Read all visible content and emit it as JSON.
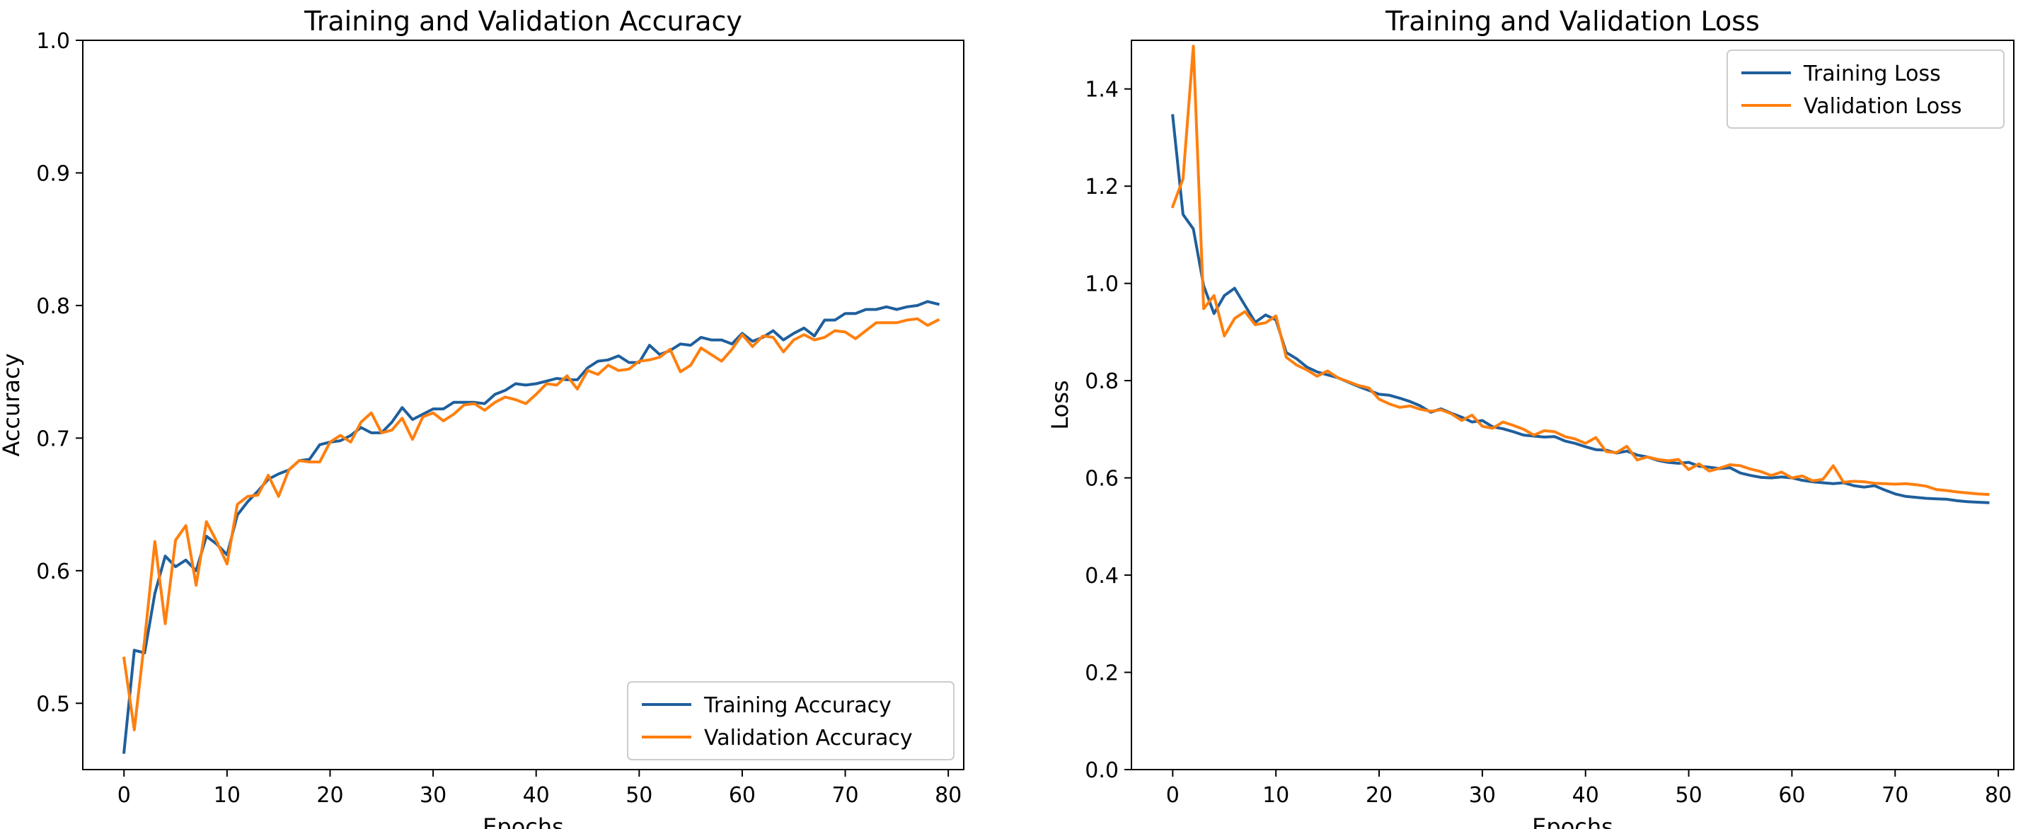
{
  "chart_data": [
    {
      "type": "line",
      "title": "Training and Validation Accuracy",
      "xlabel": "Epochs",
      "ylabel": "Accuracy",
      "xlim": [
        -4,
        81.5
      ],
      "ylim": [
        0.45,
        1.0
      ],
      "xticks": [
        0,
        10,
        20,
        30,
        40,
        50,
        60,
        70,
        80
      ],
      "yticks": [
        0.5,
        0.6,
        0.7,
        0.8,
        0.9,
        1.0
      ],
      "ytick_labels": [
        "0.5",
        "0.6",
        "0.7",
        "0.8",
        "0.9",
        "1.0"
      ],
      "grid": false,
      "legend_position": "lower-right",
      "x": [
        0,
        1,
        2,
        3,
        4,
        5,
        6,
        7,
        8,
        9,
        10,
        11,
        12,
        13,
        14,
        15,
        16,
        17,
        18,
        19,
        20,
        21,
        22,
        23,
        24,
        25,
        26,
        27,
        28,
        29,
        30,
        31,
        32,
        33,
        34,
        35,
        36,
        37,
        38,
        39,
        40,
        41,
        42,
        43,
        44,
        45,
        46,
        47,
        48,
        49,
        50,
        51,
        52,
        53,
        54,
        55,
        56,
        57,
        58,
        59,
        60,
        61,
        62,
        63,
        64,
        65,
        66,
        67,
        68,
        69,
        70,
        71,
        72,
        73,
        74,
        75,
        76,
        77,
        78,
        79
      ],
      "series": [
        {
          "name": "Training Accuracy",
          "color": "#1f5f9c",
          "values": [
            0.463,
            0.54,
            0.538,
            0.583,
            0.611,
            0.603,
            0.608,
            0.6,
            0.626,
            0.62,
            0.612,
            0.642,
            0.652,
            0.66,
            0.669,
            0.673,
            0.676,
            0.683,
            0.684,
            0.695,
            0.697,
            0.698,
            0.702,
            0.708,
            0.704,
            0.704,
            0.712,
            0.723,
            0.714,
            0.718,
            0.722,
            0.722,
            0.727,
            0.727,
            0.727,
            0.726,
            0.733,
            0.736,
            0.741,
            0.74,
            0.741,
            0.743,
            0.745,
            0.744,
            0.744,
            0.753,
            0.758,
            0.759,
            0.762,
            0.757,
            0.757,
            0.77,
            0.763,
            0.766,
            0.771,
            0.77,
            0.776,
            0.774,
            0.774,
            0.771,
            0.779,
            0.773,
            0.776,
            0.781,
            0.774,
            0.779,
            0.783,
            0.777,
            0.789,
            0.789,
            0.794,
            0.794,
            0.797,
            0.797,
            0.799,
            0.797,
            0.799,
            0.8,
            0.803,
            0.801
          ]
        },
        {
          "name": "Validation Accuracy",
          "color": "#ff7f0e",
          "values": [
            0.534,
            0.48,
            0.548,
            0.622,
            0.56,
            0.623,
            0.634,
            0.589,
            0.637,
            0.622,
            0.605,
            0.65,
            0.656,
            0.657,
            0.672,
            0.656,
            0.676,
            0.683,
            0.682,
            0.682,
            0.697,
            0.702,
            0.697,
            0.712,
            0.719,
            0.704,
            0.706,
            0.715,
            0.699,
            0.716,
            0.719,
            0.713,
            0.718,
            0.725,
            0.726,
            0.721,
            0.727,
            0.731,
            0.729,
            0.726,
            0.733,
            0.741,
            0.74,
            0.747,
            0.737,
            0.751,
            0.748,
            0.755,
            0.751,
            0.752,
            0.758,
            0.759,
            0.761,
            0.767,
            0.75,
            0.755,
            0.768,
            0.763,
            0.758,
            0.767,
            0.778,
            0.769,
            0.777,
            0.776,
            0.765,
            0.774,
            0.778,
            0.774,
            0.776,
            0.781,
            0.78,
            0.775,
            0.781,
            0.787,
            0.787,
            0.787,
            0.789,
            0.79,
            0.785,
            0.789
          ]
        }
      ]
    },
    {
      "type": "line",
      "title": "Training and Validation Loss",
      "xlabel": "Epochs",
      "ylabel": "Loss",
      "xlim": [
        -4,
        81.5
      ],
      "ylim": [
        0.0,
        1.5
      ],
      "xticks": [
        0,
        10,
        20,
        30,
        40,
        50,
        60,
        70,
        80
      ],
      "yticks": [
        0.0,
        0.2,
        0.4,
        0.6,
        0.8,
        1.0,
        1.2,
        1.4
      ],
      "ytick_labels": [
        "0.0",
        "0.2",
        "0.4",
        "0.6",
        "0.8",
        "1.0",
        "1.2",
        "1.4"
      ],
      "grid": false,
      "legend_position": "upper-right",
      "x": [
        0,
        1,
        2,
        3,
        4,
        5,
        6,
        7,
        8,
        9,
        10,
        11,
        12,
        13,
        14,
        15,
        16,
        17,
        18,
        19,
        20,
        21,
        22,
        23,
        24,
        25,
        26,
        27,
        28,
        29,
        30,
        31,
        32,
        33,
        34,
        35,
        36,
        37,
        38,
        39,
        40,
        41,
        42,
        43,
        44,
        45,
        46,
        47,
        48,
        49,
        50,
        51,
        52,
        53,
        54,
        55,
        56,
        57,
        58,
        59,
        60,
        61,
        62,
        63,
        64,
        65,
        66,
        67,
        68,
        69,
        70,
        71,
        72,
        73,
        74,
        75,
        76,
        77,
        78,
        79
      ],
      "series": [
        {
          "name": "Training Loss",
          "color": "#1f5f9c",
          "values": [
            1.345,
            1.142,
            1.112,
            0.995,
            0.938,
            0.975,
            0.99,
            0.955,
            0.92,
            0.935,
            0.925,
            0.858,
            0.845,
            0.828,
            0.818,
            0.812,
            0.806,
            0.797,
            0.788,
            0.78,
            0.772,
            0.77,
            0.764,
            0.757,
            0.748,
            0.735,
            0.742,
            0.733,
            0.725,
            0.715,
            0.718,
            0.705,
            0.701,
            0.695,
            0.688,
            0.686,
            0.684,
            0.685,
            0.676,
            0.671,
            0.664,
            0.658,
            0.657,
            0.651,
            0.655,
            0.647,
            0.643,
            0.636,
            0.632,
            0.63,
            0.632,
            0.624,
            0.622,
            0.619,
            0.621,
            0.61,
            0.605,
            0.601,
            0.6,
            0.602,
            0.6,
            0.595,
            0.592,
            0.59,
            0.588,
            0.59,
            0.584,
            0.581,
            0.584,
            0.575,
            0.567,
            0.562,
            0.56,
            0.558,
            0.557,
            0.556,
            0.553,
            0.551,
            0.55,
            0.549
          ]
        },
        {
          "name": "Validation Loss",
          "color": "#ff7f0e",
          "values": [
            1.158,
            1.215,
            1.488,
            0.948,
            0.975,
            0.892,
            0.928,
            0.942,
            0.915,
            0.919,
            0.933,
            0.848,
            0.832,
            0.822,
            0.809,
            0.82,
            0.806,
            0.798,
            0.79,
            0.785,
            0.762,
            0.752,
            0.745,
            0.748,
            0.741,
            0.737,
            0.74,
            0.732,
            0.718,
            0.729,
            0.706,
            0.702,
            0.715,
            0.708,
            0.7,
            0.688,
            0.697,
            0.695,
            0.685,
            0.68,
            0.671,
            0.683,
            0.654,
            0.652,
            0.665,
            0.637,
            0.643,
            0.638,
            0.635,
            0.638,
            0.617,
            0.629,
            0.614,
            0.62,
            0.627,
            0.625,
            0.618,
            0.613,
            0.605,
            0.612,
            0.6,
            0.604,
            0.594,
            0.597,
            0.625,
            0.591,
            0.593,
            0.592,
            0.589,
            0.588,
            0.587,
            0.588,
            0.586,
            0.583,
            0.576,
            0.574,
            0.571,
            0.569,
            0.567,
            0.566
          ]
        }
      ]
    }
  ]
}
